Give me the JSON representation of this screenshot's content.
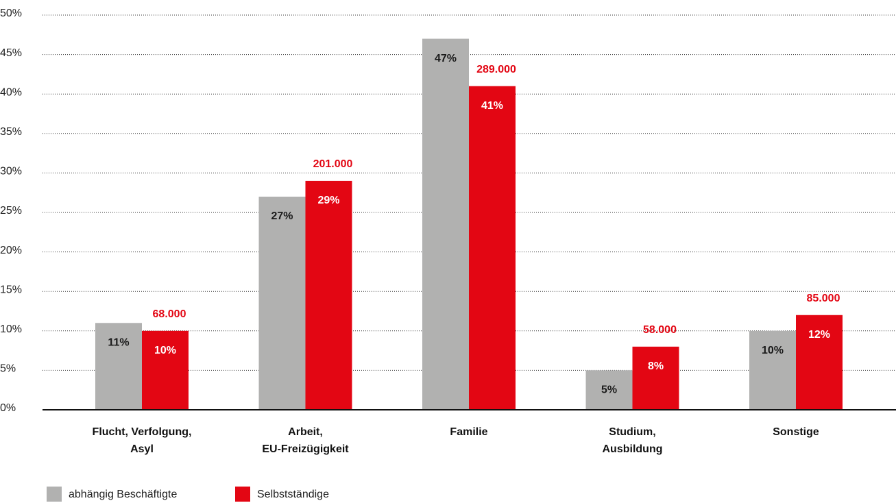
{
  "chart_data": {
    "type": "bar",
    "categories": [
      [
        "Flucht, Verfolgung,",
        "Asyl"
      ],
      [
        "Arbeit,",
        "EU-Freizügigkeit"
      ],
      [
        "Familie"
      ],
      [
        "Studium,",
        "Ausbildung"
      ],
      [
        "Sonstige"
      ]
    ],
    "series": [
      {
        "name": "abhängig Beschäftigte",
        "color": "#b1b1b0",
        "label_color": "#1a1a1a",
        "values": [
          11,
          27,
          47,
          5,
          10
        ],
        "value_labels": [
          "11%",
          "27%",
          "47%",
          "5%",
          "10%"
        ]
      },
      {
        "name": "Selbstständige",
        "color": "#e30613",
        "label_color": "#ffffff",
        "values": [
          10,
          29,
          41,
          8,
          12
        ],
        "value_labels": [
          "10%",
          "29%",
          "41%",
          "8%",
          "12%"
        ],
        "totals": [
          68000,
          201000,
          289000,
          58000,
          85000
        ],
        "total_labels": [
          "68.000",
          "201.000",
          "289.000",
          "58.000",
          "85.000"
        ],
        "total_color": "#e30613"
      }
    ],
    "ylim": [
      0,
      50
    ],
    "yticks": [
      {
        "value": 0,
        "label": "0%"
      },
      {
        "value": 5,
        "label": "5%"
      },
      {
        "value": 10,
        "label": "10%"
      },
      {
        "value": 15,
        "label": "15%"
      },
      {
        "value": 20,
        "label": "20%"
      },
      {
        "value": 25,
        "label": "25%"
      },
      {
        "value": 30,
        "label": "30%"
      },
      {
        "value": 35,
        "label": "35%"
      },
      {
        "value": 40,
        "label": "40%"
      },
      {
        "value": 45,
        "label": "45%"
      },
      {
        "value": 50,
        "label": "50%"
      }
    ],
    "grid": true
  }
}
